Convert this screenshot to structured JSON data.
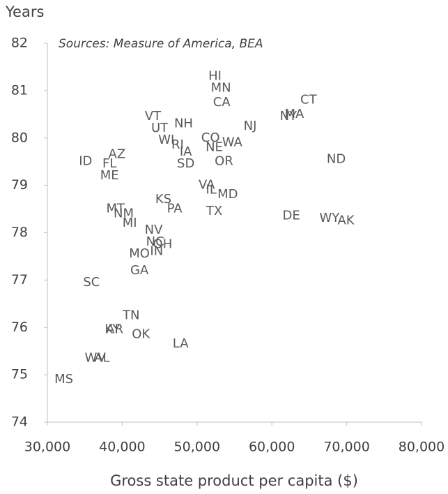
{
  "chart_data": {
    "type": "scatter",
    "subtitle": "Sources: Measure of America, BEA",
    "ylabel": "Years",
    "xlabel": "Gross state product per capita ($)",
    "labels": [
      "HI",
      "MN",
      "CA",
      "CT",
      "MA",
      "NY",
      "NJ",
      "VT",
      "NH",
      "UT",
      "CO",
      "WI",
      "WA",
      "RI",
      "NE",
      "IA",
      "AZ",
      "ND",
      "ID",
      "FL",
      "SD",
      "OR",
      "ME",
      "VA",
      "IL",
      "MD",
      "KS",
      "PA",
      "MT",
      "NM",
      "TX",
      "MI",
      "DE",
      "WY",
      "AK",
      "NV",
      "NC",
      "OH",
      "IN",
      "MO",
      "GA",
      "SC",
      "TN",
      "KY",
      "AR",
      "OK",
      "LA",
      "WV",
      "AL",
      "MS"
    ],
    "x": [
      52400,
      53200,
      53300,
      64900,
      63000,
      62200,
      57100,
      44100,
      48200,
      45000,
      51800,
      45900,
      54700,
      47400,
      52300,
      48500,
      39300,
      68600,
      35100,
      38300,
      48500,
      53600,
      38300,
      51300,
      51900,
      54100,
      45500,
      47000,
      39100,
      40200,
      52300,
      41000,
      62600,
      67700,
      69900,
      44200,
      44400,
      45400,
      44600,
      42300,
      42300,
      35900,
      41200,
      38700,
      39000,
      42500,
      47800,
      36400,
      37300,
      32200
    ],
    "values": [
      81.3,
      81.05,
      80.75,
      80.8,
      80.5,
      80.45,
      80.25,
      80.45,
      80.3,
      80.2,
      80.0,
      79.95,
      79.9,
      79.85,
      79.8,
      79.7,
      79.65,
      79.55,
      79.5,
      79.45,
      79.45,
      79.5,
      79.2,
      79.0,
      78.9,
      78.8,
      78.7,
      78.5,
      78.5,
      78.4,
      78.45,
      78.2,
      78.35,
      78.3,
      78.25,
      78.05,
      77.8,
      77.75,
      77.6,
      77.55,
      77.2,
      76.95,
      76.25,
      75.95,
      75.95,
      75.85,
      75.65,
      75.35,
      75.35,
      74.9
    ],
    "xlim": [
      30000,
      80000
    ],
    "xticks": [
      {
        "value": 30000,
        "label": "30,000"
      },
      {
        "value": 40000,
        "label": "40,000"
      },
      {
        "value": 50000,
        "label": "50,000"
      },
      {
        "value": 60000,
        "label": "60,000"
      },
      {
        "value": 70000,
        "label": "70,000"
      },
      {
        "value": 80000,
        "label": "80,000"
      }
    ],
    "ylim": [
      74,
      82
    ],
    "yticks": [
      74,
      75,
      76,
      77,
      78,
      79,
      80,
      81,
      82
    ]
  }
}
